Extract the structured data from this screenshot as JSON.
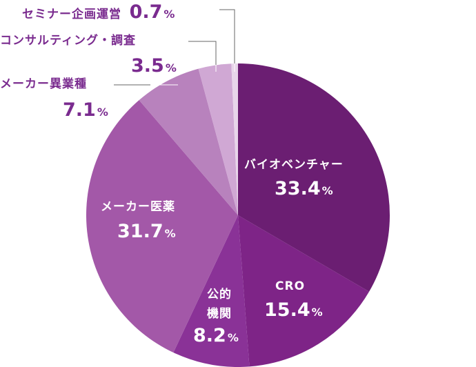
{
  "chart_data": {
    "type": "pie",
    "title": "",
    "start_angle_deg": 0,
    "direction": "clockwise",
    "categories": [
      "バイオベンチャー",
      "CRO",
      "公的機関",
      "メーカー医薬",
      "メーカー異業種",
      "コンサルティング・調査",
      "セミナー企画運営"
    ],
    "values": [
      33.4,
      15.4,
      8.2,
      31.7,
      7.1,
      3.5,
      0.7
    ],
    "unit": "%",
    "colors": [
      "#6b1e72",
      "#7e2487",
      "#8a3297",
      "#a358a8",
      "#b882bd",
      "#d0a8d4",
      "#e8d5ea"
    ],
    "labels": [
      {
        "name": "バイオベンチャー",
        "value": "33.4",
        "placement": "inside"
      },
      {
        "name": "CRO",
        "value": "15.4",
        "placement": "inside"
      },
      {
        "name": "公的機関",
        "name_lines": [
          "公的",
          "機関"
        ],
        "value": "8.2",
        "placement": "inside"
      },
      {
        "name": "メーカー医薬",
        "value": "31.7",
        "placement": "inside"
      },
      {
        "name": "メーカー異業種",
        "value": "7.1",
        "placement": "outside"
      },
      {
        "name": "コンサルティング・調査",
        "value": "3.5",
        "placement": "outside"
      },
      {
        "name": "セミナー企画運営",
        "value": "0.7",
        "placement": "outside"
      }
    ],
    "legend": "none",
    "percent_sign": "%"
  }
}
